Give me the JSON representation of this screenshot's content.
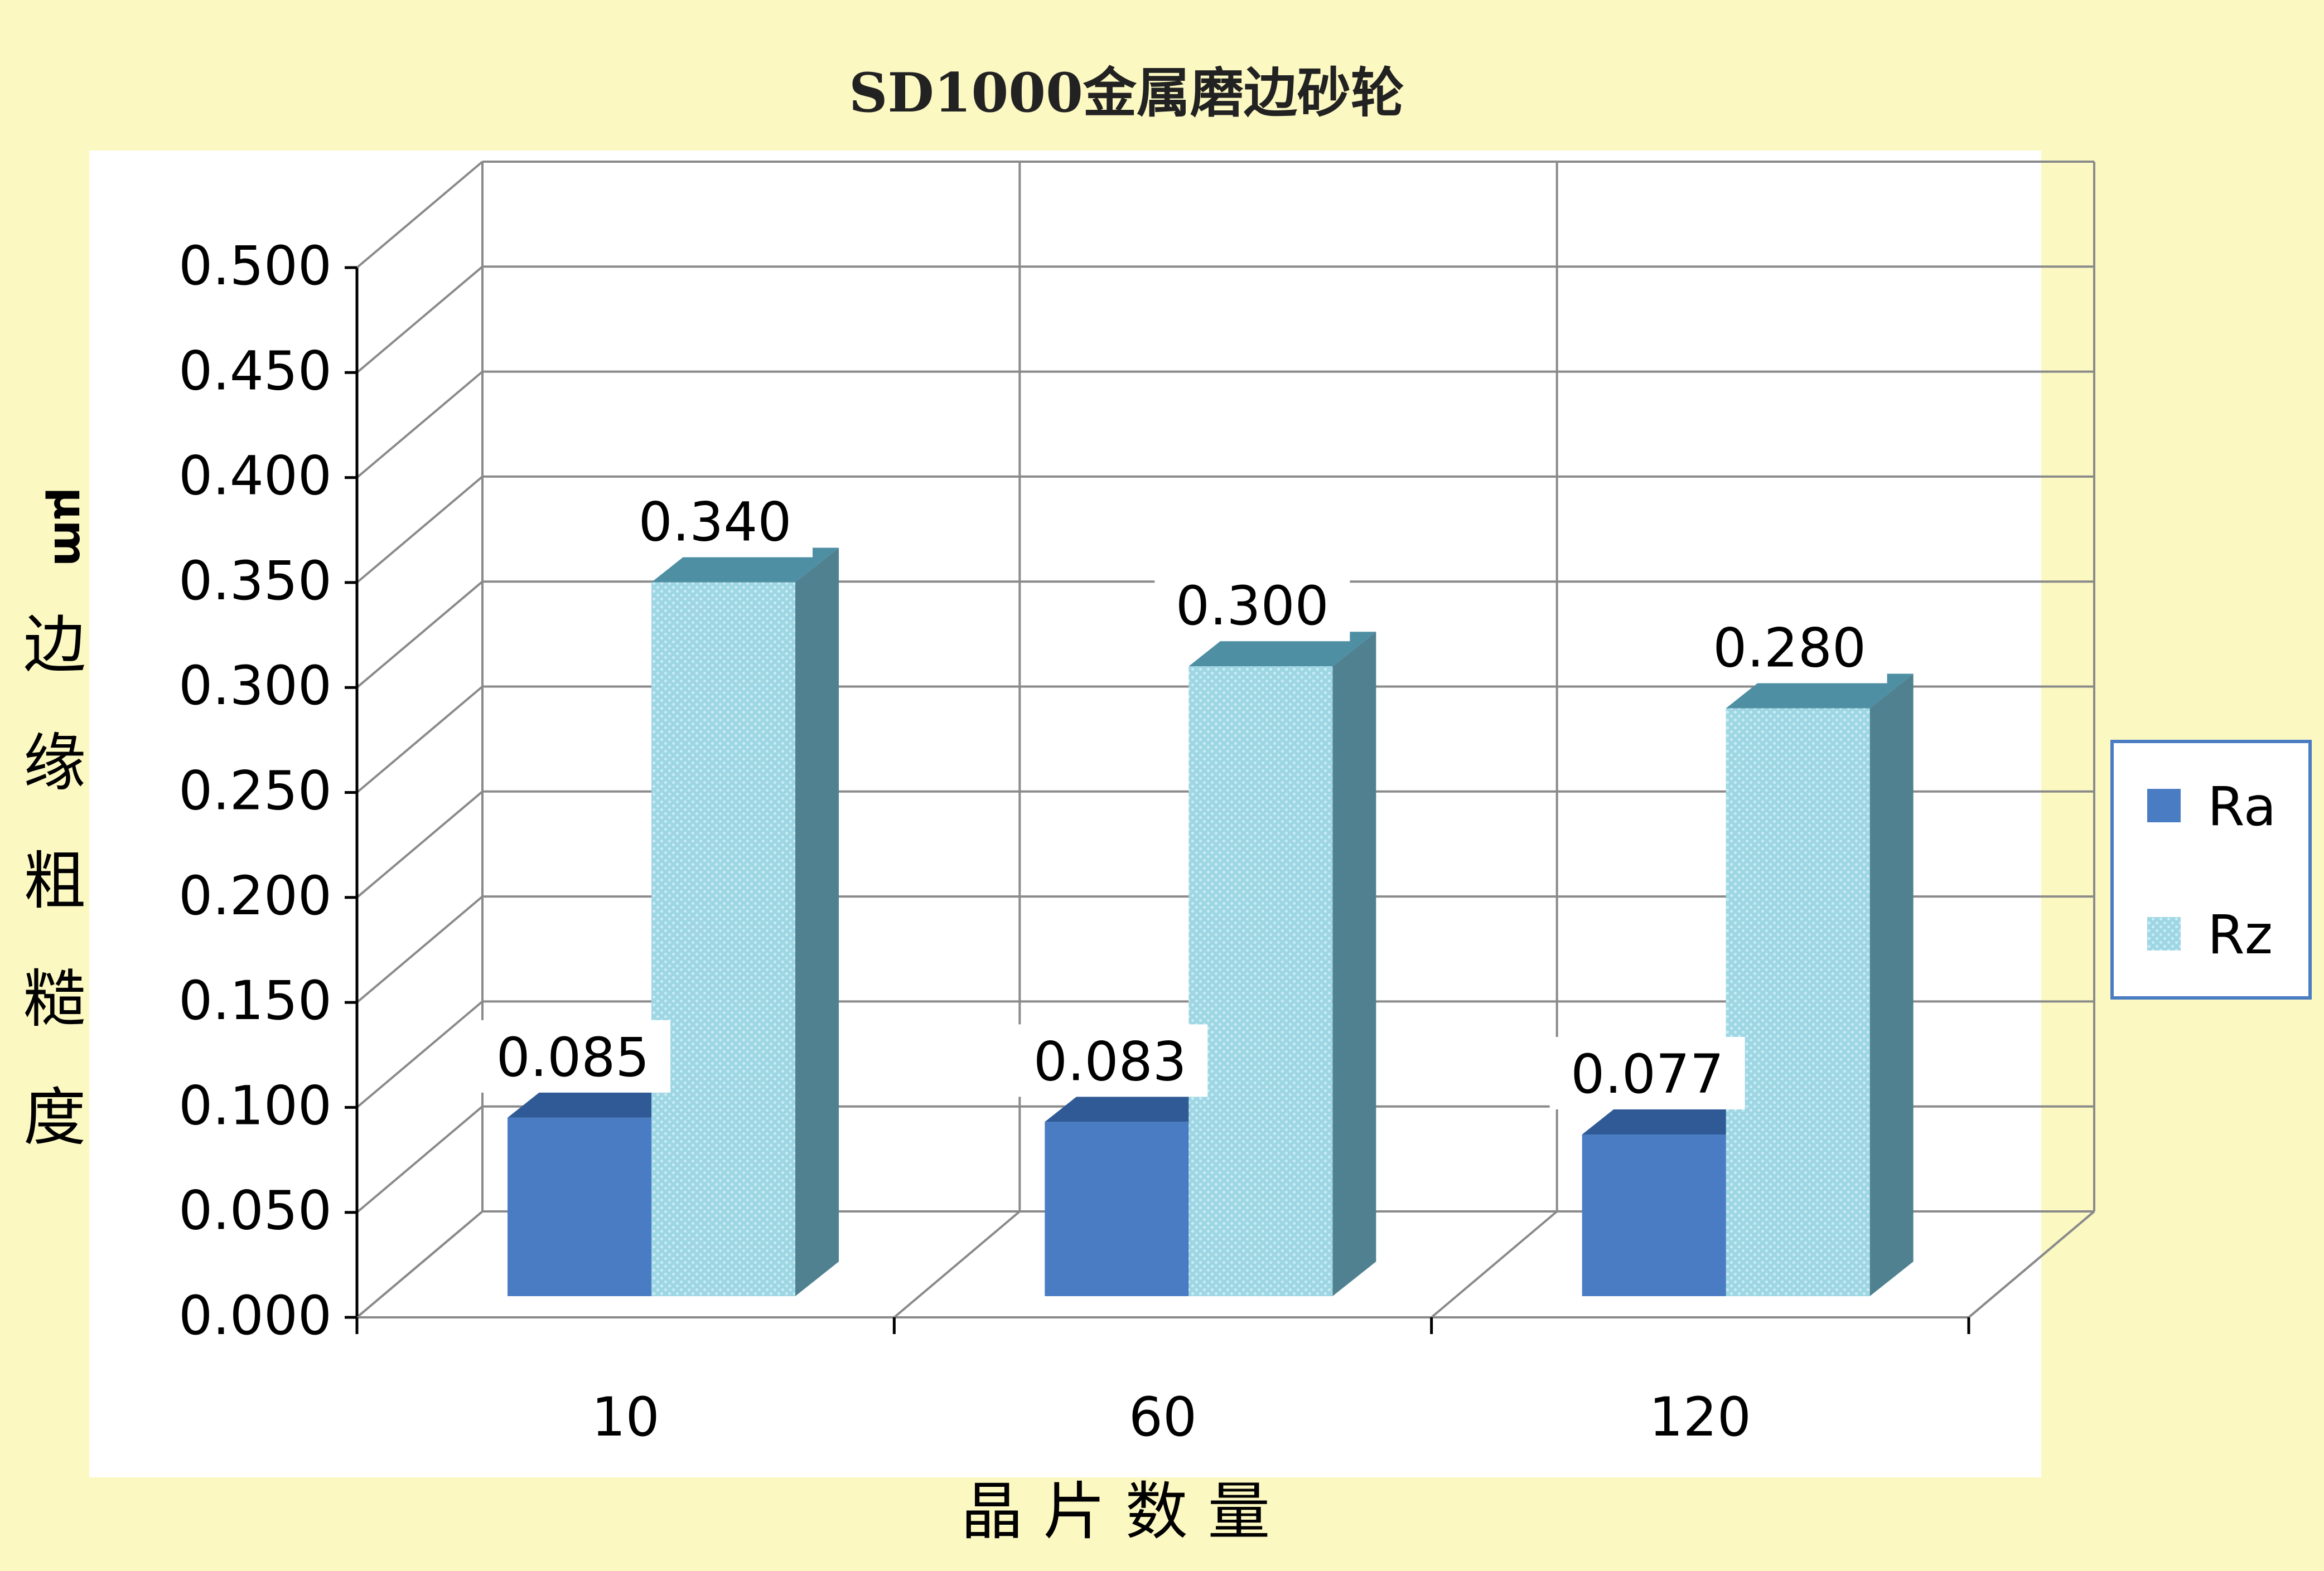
{
  "chart_data": {
    "type": "bar",
    "title": "SD1000金属磨边砂轮",
    "xlabel": "晶 片 数 量",
    "ylabel_unit": "μm",
    "ylabel": "边缘粗糙度",
    "categories": [
      "10",
      "60",
      "120"
    ],
    "series": [
      {
        "name": "Ra",
        "values": [
          0.085,
          0.083,
          0.077
        ],
        "value_labels": [
          "0.085",
          "0.083",
          "0.077"
        ]
      },
      {
        "name": "Rz",
        "values": [
          0.34,
          0.3,
          0.28
        ],
        "value_labels": [
          "0.340",
          "0.300",
          "0.280"
        ]
      }
    ],
    "ylim": [
      0,
      0.5
    ],
    "yticks": [
      "0.000",
      "0.050",
      "0.100",
      "0.150",
      "0.200",
      "0.250",
      "0.300",
      "0.350",
      "0.400",
      "0.450",
      "0.500"
    ],
    "grid": true,
    "three_d": true,
    "legend_position": "right",
    "colors": {
      "page_background": "#fcf8c2",
      "plot_background": "#ffffff",
      "Ra_front": "#4a7cc4",
      "Ra_top": "#2f5a96",
      "Rz_front": "#9ed6e4",
      "Rz_top": "#4e8fa4",
      "Rz_side": "#4f8190",
      "gridline": "#8a8a8a",
      "axis_text": "#000000",
      "legend_border": "#4a7cc4"
    }
  }
}
